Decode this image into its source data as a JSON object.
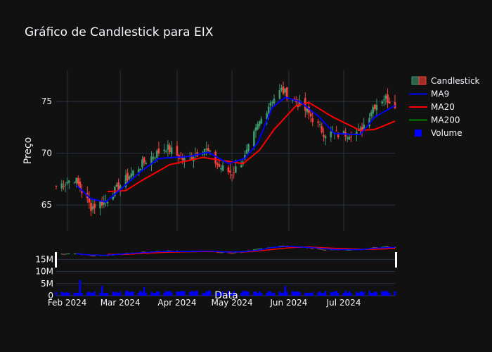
{
  "chart_data": {
    "type": "candlestick",
    "title": "Gráfico de Candlestick para EIX",
    "xlabel": "Data",
    "ylabel": "Preço",
    "price_ylim": [
      62.5,
      78.0
    ],
    "price_ticks": [
      "65",
      "70",
      "75"
    ],
    "volume_ticks": [
      "0",
      "5M",
      "10M",
      "15M"
    ],
    "x_tick_labels": [
      "Feb 2024",
      "Mar 2024",
      "Apr 2024",
      "May 2024",
      "Jun 2024",
      "Jul 2024"
    ],
    "x_tick_dates": [
      "2024-02-01",
      "2024-03-01",
      "2024-04-01",
      "2024-05-01",
      "2024-06-01",
      "2024-07-01"
    ],
    "date_range": [
      "2024-01-26",
      "2024-07-29"
    ],
    "legend": [
      "Candlestick",
      "MA9",
      "MA20",
      "MA200",
      "Volume"
    ],
    "colors": {
      "bg": "#111111",
      "grid": "#283442",
      "up": "#3d9970",
      "down": "#ff4136",
      "ma9": "#0000ff",
      "ma20": "#ff0000",
      "ma200": "#008000",
      "volume": "#0000ff"
    },
    "close_waypoints": [
      [
        "2024-01-26",
        66.8
      ],
      [
        "2024-02-05",
        67.6
      ],
      [
        "2024-02-14",
        64.8
      ],
      [
        "2024-02-22",
        65.4
      ],
      [
        "2024-03-04",
        67.5
      ],
      [
        "2024-03-15",
        69.3
      ],
      [
        "2024-03-26",
        70.6
      ],
      [
        "2024-04-05",
        69.3
      ],
      [
        "2024-04-16",
        70.5
      ],
      [
        "2024-04-24",
        68.7
      ],
      [
        "2024-05-01",
        68.1
      ],
      [
        "2024-05-08",
        69.6
      ],
      [
        "2024-05-15",
        72.6
      ],
      [
        "2024-05-22",
        75.0
      ],
      [
        "2024-05-28",
        76.1
      ],
      [
        "2024-06-05",
        75.0
      ],
      [
        "2024-06-12",
        73.8
      ],
      [
        "2024-06-20",
        72.0
      ],
      [
        "2024-06-28",
        71.8
      ],
      [
        "2024-07-10",
        72.1
      ],
      [
        "2024-07-17",
        74.5
      ],
      [
        "2024-07-23",
        75.4
      ],
      [
        "2024-07-29",
        74.8
      ]
    ],
    "ma9_waypoints": [
      [
        "2024-02-06",
        66.9
      ],
      [
        "2024-02-14",
        65.6
      ],
      [
        "2024-02-22",
        65.3
      ],
      [
        "2024-03-01",
        66.5
      ],
      [
        "2024-03-12",
        68.2
      ],
      [
        "2024-03-22",
        69.5
      ],
      [
        "2024-04-08",
        69.7
      ],
      [
        "2024-04-18",
        70.1
      ],
      [
        "2024-04-29",
        69.0
      ],
      [
        "2024-05-08",
        69.5
      ],
      [
        "2024-05-15",
        71.0
      ],
      [
        "2024-05-23",
        74.4
      ],
      [
        "2024-05-30",
        75.4
      ],
      [
        "2024-06-07",
        75.0
      ],
      [
        "2024-06-17",
        73.6
      ],
      [
        "2024-06-26",
        71.9
      ],
      [
        "2024-07-10",
        71.8
      ],
      [
        "2024-07-18",
        73.5
      ],
      [
        "2024-07-29",
        74.6
      ]
    ],
    "ma20_waypoints": [
      [
        "2024-02-23",
        66.3
      ],
      [
        "2024-03-04",
        66.4
      ],
      [
        "2024-03-14",
        67.5
      ],
      [
        "2024-03-28",
        68.9
      ],
      [
        "2024-04-15",
        69.6
      ],
      [
        "2024-04-26",
        69.3
      ],
      [
        "2024-05-07",
        69.0
      ],
      [
        "2024-05-16",
        70.3
      ],
      [
        "2024-05-24",
        72.3
      ],
      [
        "2024-06-05",
        74.6
      ],
      [
        "2024-06-12",
        74.9
      ],
      [
        "2024-06-25",
        73.5
      ],
      [
        "2024-07-10",
        72.2
      ],
      [
        "2024-07-18",
        72.3
      ],
      [
        "2024-07-29",
        73.1
      ]
    ],
    "volume_typical": "1M-2M",
    "volume_spikes": [
      [
        "2024-02-08",
        6.5
      ],
      [
        "2024-02-20",
        4.0
      ],
      [
        "2024-03-14",
        3.5
      ],
      [
        "2024-05-30",
        4.0
      ]
    ]
  }
}
